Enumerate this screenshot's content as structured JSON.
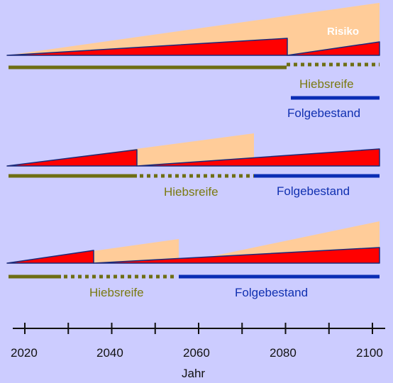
{
  "colors": {
    "background": "#CCCCFF",
    "risk_area": "#FFCC99",
    "risk_triangle": "#FF0000",
    "outline": "#1A2A7A",
    "hiebsreife_line": "#6E6E14",
    "folgebestand_line": "#0A2DB4",
    "axis": "#111111"
  },
  "labels": {
    "risiko": "Risiko",
    "hiebsreife": "Hiebsreife",
    "folgebestand": "Folgebestand"
  },
  "scenarios": [
    {
      "id": "A",
      "hiebsreife_start": 2080,
      "folgebestand_start": 2080
    },
    {
      "id": "B",
      "hiebsreife_start": 2046,
      "folgebestand_start": 2073
    },
    {
      "id": "C",
      "hiebsreife_start": 2035,
      "folgebestand_start": 2056
    }
  ],
  "axis": {
    "title": "Jahr",
    "min": 2020,
    "max": 2100,
    "tick_step": 10,
    "tick_labels": [
      "2020",
      "2040",
      "2060",
      "2080",
      "2100"
    ]
  }
}
